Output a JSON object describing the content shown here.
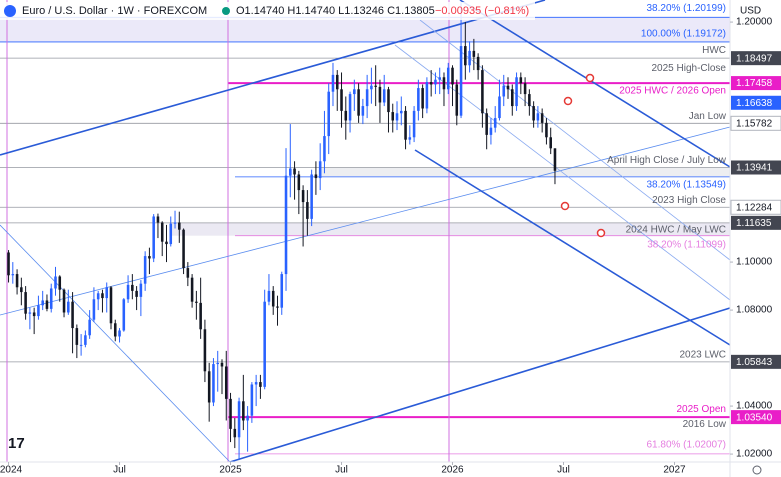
{
  "chart_data": {
    "type": "candlestick",
    "symbol": "Euro / U.S. Dollar · 1W · FOREXCOM",
    "ohlc_text": "O1.14740 H1.14740 L1.13246 C1.13805",
    "change_text": "−0.00935 (−0.81%)",
    "currency": "USD",
    "up_color": "#2962ff",
    "down_color": "#131722",
    "grid": false,
    "xlim": [
      -2,
      169
    ],
    "ylim": [
      1.0167,
      1.2092
    ],
    "xticks": [
      {
        "value": 0,
        "label": "2024"
      },
      {
        "value": 26,
        "label": "Jul"
      },
      {
        "value": 52,
        "label": "2025"
      },
      {
        "value": 78,
        "label": "Jul"
      },
      {
        "value": 104,
        "label": "2026"
      },
      {
        "value": 130,
        "label": "Jul"
      },
      {
        "value": 156,
        "label": "2027"
      }
    ],
    "yticks": [
      {
        "value": 1.02,
        "label": "1.02000"
      },
      {
        "value": 1.04,
        "label": "1.04000"
      },
      {
        "value": 1.08,
        "label": "1.08000"
      },
      {
        "value": 1.1,
        "label": "1.10000"
      },
      {
        "value": 1.2,
        "label": "1.20000"
      }
    ],
    "price_tags": [
      {
        "value": 1.18497,
        "color": "#434651"
      },
      {
        "value": 1.17458,
        "color": "#e91ec8"
      },
      {
        "value": 1.16638,
        "color": "#2962ff"
      },
      {
        "value": 1.15782,
        "color": "#ffffff"
      },
      {
        "value": 1.13941,
        "color": "#434651"
      },
      {
        "value": 1.12284,
        "color": "#ffffff"
      },
      {
        "value": 1.11635,
        "color": "#434651"
      },
      {
        "value": 1.05843,
        "color": "#434651"
      },
      {
        "value": {
          "value": 1.0354,
          "label": "1.03540"
        },
        "color": "#e91ec8"
      }
    ],
    "notes": [
      {
        "text": "38.20% (1.20199)",
        "price": 1.20199,
        "color": "#2962ff"
      },
      {
        "text": "100.00% (1.19172)",
        "price": 1.19172,
        "color": "#2962ff"
      },
      {
        "text": "HWC",
        "price": 1.18497,
        "color": "#5d606b"
      },
      {
        "text": "2025 High-Close",
        "price": 1.18497,
        "color": "#5d606b"
      },
      {
        "text": "2025 HWC / 2026 Open",
        "price": 1.17458,
        "color": "#e91ec8"
      },
      {
        "text": "Jan Low",
        "price": 1.15782,
        "color": "#5d606b"
      },
      {
        "text": "April High Close / July Low",
        "price": 1.13941,
        "color": "#5d606b"
      },
      {
        "text": "38.20% (1.13549)",
        "price": 1.13549,
        "color": "#2962ff"
      },
      {
        "text": "2023 High Close",
        "price": 1.12284,
        "color": "#5d606b"
      },
      {
        "text": "2024 HWC / May LWC",
        "price": 1.11635,
        "color": "#5d606b"
      },
      {
        "text": "38.20% (1.11099)",
        "price": 1.11099,
        "color": "#e57ee0"
      },
      {
        "text": "2023 LWC",
        "price": 1.05843,
        "color": "#5d606b"
      },
      {
        "text": "2025 Open",
        "price": 1.0354,
        "color": "#e91ec8"
      },
      {
        "text": "2016 Low",
        "price": 1.0354,
        "color": "#5d606b"
      },
      {
        "text": "61.80% (1.02007)",
        "price": 1.02007,
        "color": "#e57ee0"
      }
    ],
    "x": [
      0,
      1,
      2,
      3,
      4,
      5,
      6,
      7,
      8,
      9,
      10,
      11,
      12,
      13,
      14,
      15,
      16,
      17,
      18,
      19,
      20,
      21,
      22,
      23,
      24,
      25,
      26,
      27,
      28,
      29,
      30,
      31,
      32,
      33,
      34,
      35,
      36,
      37,
      38,
      39,
      40,
      41,
      42,
      43,
      44,
      45,
      46,
      47,
      48,
      49,
      50,
      51,
      52,
      53,
      54,
      55,
      56,
      57,
      58,
      59,
      60,
      61,
      62,
      63,
      64,
      65,
      66,
      67,
      68,
      69,
      70,
      71,
      72,
      73,
      74,
      75,
      76,
      77,
      78,
      79,
      80,
      81,
      82,
      83,
      84,
      85,
      86,
      87,
      88,
      89,
      90,
      91,
      92,
      93,
      94,
      95,
      96,
      97,
      98,
      99,
      100,
      101,
      102,
      103,
      104,
      105,
      106,
      107,
      108,
      109,
      110,
      111,
      112,
      113,
      114,
      115,
      116,
      117,
      118,
      119,
      120,
      121,
      122,
      123,
      124,
      125,
      126,
      127,
      128
    ],
    "ohlc": [
      [
        1.104,
        1.105,
        1.0915,
        1.0945
      ],
      [
        1.0945,
        1.1,
        1.091,
        1.095
      ],
      [
        1.095,
        1.097,
        1.0865,
        1.0895
      ],
      [
        1.0895,
        1.0935,
        1.082,
        1.0875
      ],
      [
        1.0875,
        1.09,
        1.076,
        1.0785
      ],
      [
        1.0785,
        1.081,
        1.072,
        1.079
      ],
      [
        1.079,
        1.081,
        1.07,
        1.0775
      ],
      [
        1.0775,
        1.086,
        1.076,
        1.082
      ],
      [
        1.082,
        1.088,
        1.08,
        1.084
      ],
      [
        1.084,
        1.0865,
        1.0795,
        1.0805
      ],
      [
        1.0805,
        1.091,
        1.079,
        1.089
      ],
      [
        1.089,
        1.098,
        1.086,
        1.094
      ],
      [
        1.094,
        1.0945,
        1.0835,
        1.0885
      ],
      [
        1.0885,
        1.089,
        1.077,
        1.079
      ],
      [
        1.079,
        1.0885,
        1.078,
        1.0835
      ],
      [
        1.0835,
        1.0875,
        1.062,
        1.0725
      ],
      [
        1.0725,
        1.074,
        1.06,
        1.0655
      ],
      [
        1.0655,
        1.07,
        1.061,
        1.0655
      ],
      [
        1.0655,
        1.0715,
        1.0645,
        1.0695
      ],
      [
        1.0695,
        1.08,
        1.068,
        1.076
      ],
      [
        1.076,
        1.0895,
        1.075,
        1.0845
      ],
      [
        1.0845,
        1.088,
        1.08,
        1.087
      ],
      [
        1.087,
        1.0885,
        1.079,
        1.085
      ],
      [
        1.085,
        1.0915,
        1.079,
        1.0895
      ],
      [
        1.0895,
        1.09,
        1.072,
        1.0745
      ],
      [
        1.0745,
        1.076,
        1.067,
        1.069
      ],
      [
        1.069,
        1.0725,
        1.0665,
        1.0715
      ],
      [
        1.0715,
        1.085,
        1.071,
        1.0845
      ],
      [
        1.0845,
        1.0945,
        1.083,
        1.0905
      ],
      [
        1.0905,
        1.095,
        1.0845,
        1.088
      ],
      [
        1.088,
        1.09,
        1.08,
        1.0855
      ],
      [
        1.0855,
        1.0925,
        1.0775,
        1.091
      ],
      [
        1.091,
        1.1045,
        1.088,
        1.1025
      ],
      [
        1.1025,
        1.106,
        1.095,
        1.1015
      ],
      [
        1.1015,
        1.12,
        1.1,
        1.119
      ],
      [
        1.119,
        1.1202,
        1.11,
        1.1165
      ],
      [
        1.1165,
        1.117,
        1.1025,
        1.1085
      ],
      [
        1.1085,
        1.1155,
        1.1,
        1.1075
      ],
      [
        1.1075,
        1.119,
        1.1065,
        1.116
      ],
      [
        1.116,
        1.1214,
        1.114,
        1.1165
      ],
      [
        1.1165,
        1.121,
        1.108,
        1.1135
      ],
      [
        1.1135,
        1.114,
        1.095,
        1.0975
      ],
      [
        1.0975,
        1.1,
        1.09,
        1.0935
      ],
      [
        1.0935,
        1.095,
        1.081,
        1.0835
      ],
      [
        1.0835,
        1.088,
        1.076,
        1.083
      ],
      [
        1.083,
        1.0935,
        1.068,
        1.072
      ],
      [
        1.072,
        1.076,
        1.05,
        1.0545
      ],
      [
        1.0545,
        1.058,
        1.0335,
        1.0415
      ],
      [
        1.0415,
        1.06,
        1.04,
        1.0575
      ],
      [
        1.0575,
        1.063,
        1.046,
        1.058
      ],
      [
        1.058,
        1.0595,
        1.045,
        1.0565
      ],
      [
        1.0565,
        1.063,
        1.034,
        1.043
      ],
      [
        1.043,
        1.0455,
        1.025,
        1.0305
      ],
      [
        1.0305,
        1.035,
        1.0225,
        1.027
      ],
      [
        1.027,
        1.0435,
        1.0175,
        1.042
      ],
      [
        1.042,
        1.053,
        1.03,
        1.034
      ],
      [
        1.034,
        1.04,
        1.021,
        1.036
      ],
      [
        1.036,
        1.05,
        1.033,
        1.049
      ],
      [
        1.049,
        1.053,
        1.04,
        1.05
      ],
      [
        1.05,
        1.053,
        1.043,
        1.048
      ],
      [
        1.048,
        1.0885,
        1.047,
        1.0835
      ],
      [
        1.0835,
        1.095,
        1.082,
        1.088
      ],
      [
        1.088,
        1.09,
        1.078,
        1.0815
      ],
      [
        1.0815,
        1.086,
        1.0735,
        1.081
      ],
      [
        1.081,
        1.096,
        1.078,
        1.095
      ],
      [
        1.095,
        1.1475,
        1.088,
        1.136
      ],
      [
        1.136,
        1.1575,
        1.127,
        1.139
      ],
      [
        1.139,
        1.142,
        1.126,
        1.1365
      ],
      [
        1.1365,
        1.138,
        1.12,
        1.13
      ],
      [
        1.13,
        1.132,
        1.1065,
        1.125
      ],
      [
        1.125,
        1.13,
        1.111,
        1.118
      ],
      [
        1.118,
        1.1385,
        1.115,
        1.1365
      ],
      [
        1.1365,
        1.142,
        1.128,
        1.135
      ],
      [
        1.135,
        1.1495,
        1.13,
        1.142
      ],
      [
        1.142,
        1.163,
        1.137,
        1.1525
      ],
      [
        1.1525,
        1.1745,
        1.145,
        1.171
      ],
      [
        1.171,
        1.183,
        1.165,
        1.178
      ],
      [
        1.178,
        1.18,
        1.163,
        1.172
      ],
      [
        1.172,
        1.179,
        1.156,
        1.163
      ],
      [
        1.163,
        1.169,
        1.151,
        1.159
      ],
      [
        1.159,
        1.171,
        1.154,
        1.17
      ],
      [
        1.17,
        1.176,
        1.163,
        1.172
      ],
      [
        1.172,
        1.1745,
        1.158,
        1.161
      ],
      [
        1.161,
        1.168,
        1.1575,
        1.165
      ],
      [
        1.165,
        1.178,
        1.16,
        1.172
      ],
      [
        1.172,
        1.181,
        1.166,
        1.1735
      ],
      [
        1.1735,
        1.182,
        1.165,
        1.173
      ],
      [
        1.173,
        1.176,
        1.158,
        1.1665
      ],
      [
        1.1665,
        1.178,
        1.165,
        1.172
      ],
      [
        1.172,
        1.173,
        1.154,
        1.1625
      ],
      [
        1.1625,
        1.166,
        1.154,
        1.159
      ],
      [
        1.159,
        1.167,
        1.155,
        1.162
      ],
      [
        1.162,
        1.169,
        1.157,
        1.163
      ],
      [
        1.163,
        1.165,
        1.147,
        1.151
      ],
      [
        1.151,
        1.157,
        1.149,
        1.152
      ],
      [
        1.152,
        1.165,
        1.15,
        1.163
      ],
      [
        1.163,
        1.176,
        1.159,
        1.1725
      ],
      [
        1.1725,
        1.174,
        1.16,
        1.164
      ],
      [
        1.164,
        1.177,
        1.162,
        1.175
      ],
      [
        1.175,
        1.18,
        1.169,
        1.174
      ],
      [
        1.174,
        1.179,
        1.17,
        1.176
      ],
      [
        1.176,
        1.181,
        1.17,
        1.177
      ],
      [
        1.177,
        1.179,
        1.165,
        1.172
      ],
      [
        1.172,
        1.183,
        1.17,
        1.181
      ],
      [
        1.181,
        1.182,
        1.165,
        1.174
      ],
      [
        1.174,
        1.176,
        1.157,
        1.161
      ],
      [
        1.161,
        1.2082,
        1.16,
        1.19
      ],
      [
        1.19,
        1.2,
        1.176,
        1.182
      ],
      [
        1.182,
        1.192,
        1.179,
        1.188
      ],
      [
        1.188,
        1.193,
        1.18,
        1.1855
      ],
      [
        1.1855,
        1.187,
        1.176,
        1.18
      ],
      [
        1.18,
        1.182,
        1.156,
        1.162
      ],
      [
        1.162,
        1.164,
        1.147,
        1.153
      ],
      [
        1.153,
        1.16,
        1.149,
        1.156
      ],
      [
        1.156,
        1.165,
        1.154,
        1.16
      ],
      [
        1.16,
        1.176,
        1.159,
        1.169
      ],
      [
        1.169,
        1.178,
        1.165,
        1.1735
      ],
      [
        1.1735,
        1.177,
        1.168,
        1.172
      ],
      [
        1.172,
        1.174,
        1.161,
        1.165
      ],
      [
        1.165,
        1.179,
        1.163,
        1.177
      ],
      [
        1.177,
        1.179,
        1.17,
        1.1745
      ],
      [
        1.1745,
        1.177,
        1.165,
        1.17
      ],
      [
        1.17,
        1.172,
        1.161,
        1.165
      ],
      [
        1.165,
        1.167,
        1.156,
        1.159
      ],
      [
        1.159,
        1.165,
        1.156,
        1.162
      ],
      [
        1.162,
        1.164,
        1.154,
        1.158
      ],
      [
        1.158,
        1.16,
        1.149,
        1.152
      ],
      [
        1.152,
        1.156,
        1.145,
        1.1474
      ],
      [
        1.1474,
        1.1474,
        1.13246,
        1.13805
      ]
    ]
  }
}
